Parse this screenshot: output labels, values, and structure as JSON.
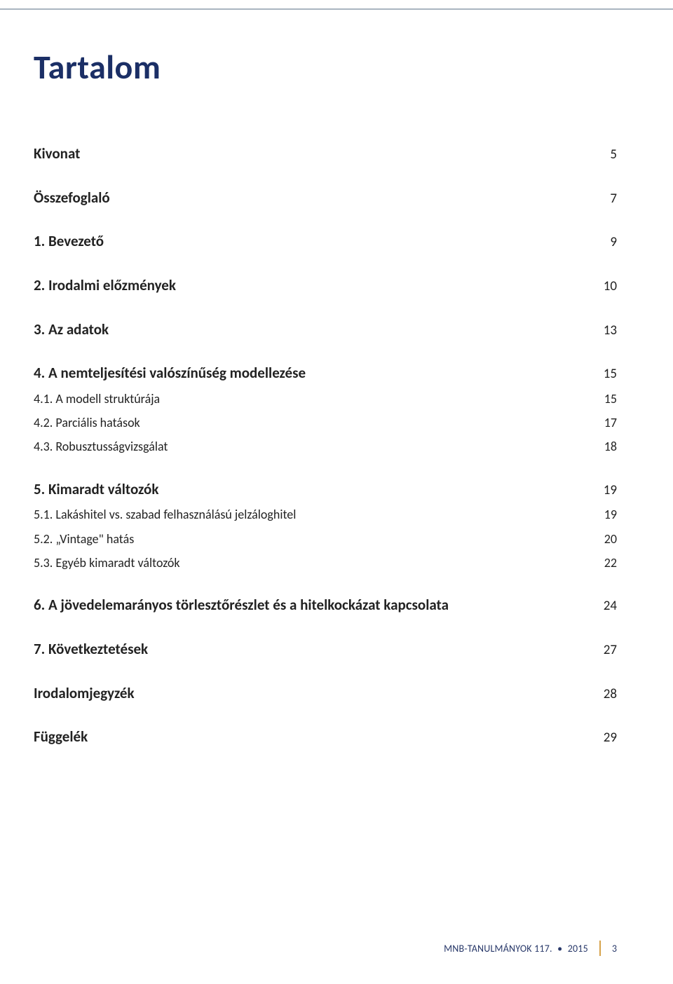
{
  "title": "Tartalom",
  "toc": [
    {
      "level": 1,
      "label": "Kivonat",
      "page": "5"
    },
    {
      "level": 1,
      "label": "Összefoglaló",
      "page": "7"
    },
    {
      "level": 1,
      "label": "1. Bevezető",
      "page": "9"
    },
    {
      "level": 1,
      "label": "2. Irodalmi előzmények",
      "page": "10"
    },
    {
      "level": 1,
      "label": "3. Az adatok",
      "page": "13"
    },
    {
      "level": 1,
      "label": "4. A nemteljesítési valószínűség modellezése",
      "page": "15"
    },
    {
      "level": 2,
      "label": "4.1. A modell struktúrája",
      "page": "15"
    },
    {
      "level": 2,
      "label": "4.2. Parciális hatások",
      "page": "17"
    },
    {
      "level": 2,
      "label": "4.3. Robusztusságvizsgálat",
      "page": "18"
    },
    {
      "level": 1,
      "label": "5. Kimaradt változók",
      "page": "19"
    },
    {
      "level": 2,
      "label": "5.1. Lakáshitel vs. szabad felhasználású jelzáloghitel",
      "page": "19"
    },
    {
      "level": 2,
      "label": "5.2. „Vintage\" hatás",
      "page": "20"
    },
    {
      "level": 2,
      "label": "5.3. Egyéb kimaradt változók",
      "page": "22"
    },
    {
      "level": 1,
      "label": "6. A jövedelemarányos törlesztőrészlet és a hitelkockázat kapcsolata",
      "page": "24"
    },
    {
      "level": 1,
      "label": "7. Következtetések",
      "page": "27"
    },
    {
      "level": 1,
      "label": "Irodalomjegyzék",
      "page": "28"
    },
    {
      "level": 1,
      "label": "Függelék",
      "page": "29"
    }
  ],
  "footer": {
    "publication": "MNB-TANULMÁNYOK 117.",
    "year": "2015",
    "page_number": "3",
    "separator_color": "#d6a24a",
    "text_color": "#29396a"
  },
  "colors": {
    "title": "#1b2f66",
    "rule": "#a9b5c0",
    "body_text": "#222222",
    "background": "#ffffff"
  }
}
